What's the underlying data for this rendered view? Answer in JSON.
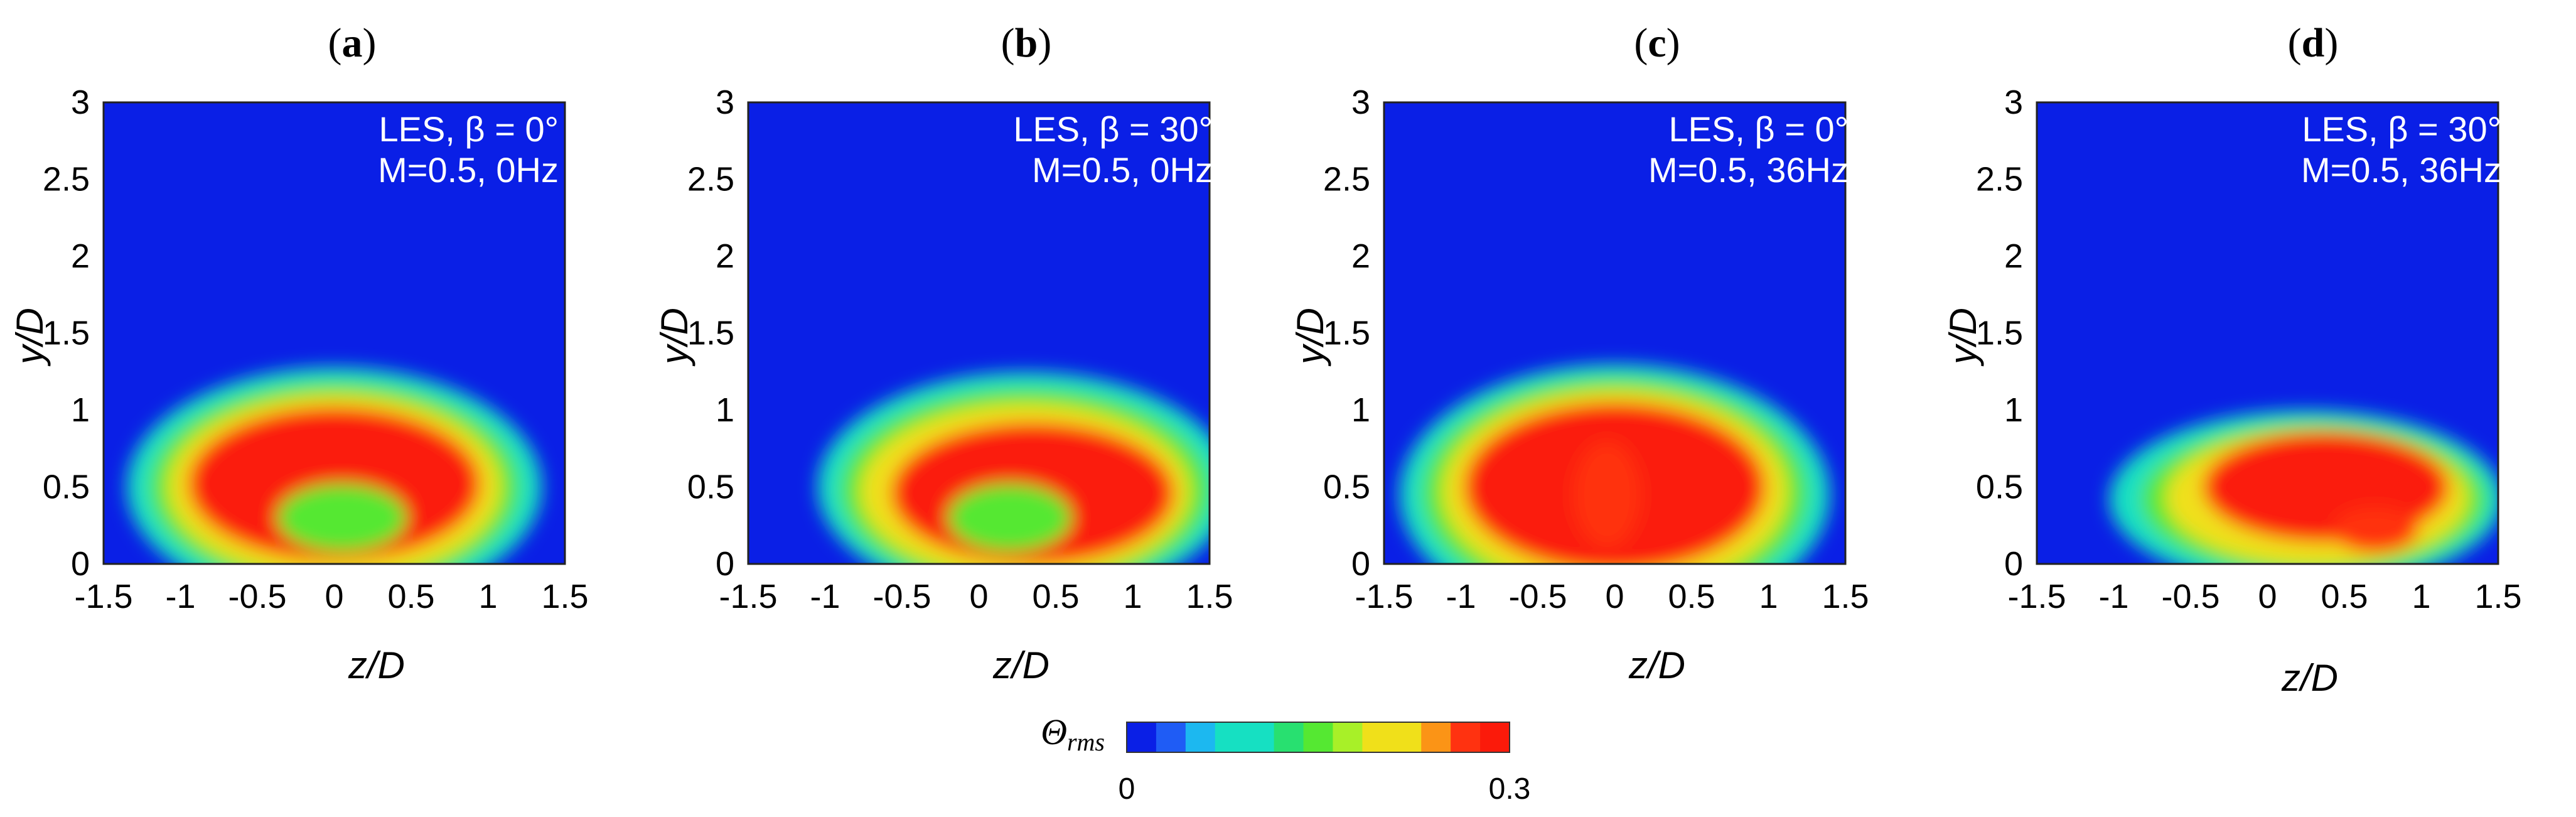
{
  "colors": {
    "background": "#0a1fe6",
    "scale": [
      "#0a1fe6",
      "#1f5cf5",
      "#1cb8f0",
      "#16e0c2",
      "#28e070",
      "#55e832",
      "#a8f028",
      "#f0e01a",
      "#fb9416",
      "#ff3210",
      "#fb1a0a"
    ]
  },
  "chart_data": [
    {
      "type": "heatmap",
      "panel": "(a)",
      "panel_open": "(",
      "panel_letter": "a",
      "panel_close": ")",
      "annotation": [
        "LES, β = 0°",
        "M=0.5, 0Hz"
      ],
      "xlabel": "z/D",
      "ylabel": "y/D",
      "xlim": [
        -1.5,
        1.5
      ],
      "ylim": [
        0,
        3
      ],
      "xticks": [
        "-1.5",
        "-1",
        "-0.5",
        "0",
        "0.5",
        "1",
        "1.5"
      ],
      "yticks": [
        "0",
        "0.5",
        "1",
        "1.5",
        "2",
        "2.5",
        "3"
      ],
      "blobs": [
        {
          "cx": 0.0,
          "cy": 0.5,
          "rx": 1.35,
          "ry": 0.78,
          "level": 0.1
        },
        {
          "cx": 0.0,
          "cy": 0.5,
          "rx": 1.2,
          "ry": 0.68,
          "level": 0.16
        },
        {
          "cx": 0.0,
          "cy": 0.5,
          "rx": 1.08,
          "ry": 0.6,
          "level": 0.22
        },
        {
          "cx": 0.0,
          "cy": 0.52,
          "rx": 0.95,
          "ry": 0.5,
          "level": 0.3
        },
        {
          "cx": 0.05,
          "cy": 0.3,
          "rx": 0.42,
          "ry": 0.22,
          "level": 0.14
        }
      ]
    },
    {
      "type": "heatmap",
      "panel": "(b)",
      "panel_open": "(",
      "panel_letter": "b",
      "panel_close": ")",
      "annotation": [
        "LES, β = 30°",
        "M=0.5, 0Hz"
      ],
      "xlabel": "z/D",
      "ylabel": "y/D",
      "xlim": [
        -1.5,
        1.5
      ],
      "ylim": [
        0,
        3
      ],
      "xticks": [
        "-1.5",
        "-1",
        "-0.5",
        "0",
        "0.5",
        "1",
        "1.5"
      ],
      "yticks": [
        "0",
        "0.5",
        "1",
        "1.5",
        "2",
        "2.5",
        "3"
      ],
      "blobs": [
        {
          "cx": 0.3,
          "cy": 0.5,
          "rx": 1.35,
          "ry": 0.75,
          "level": 0.1
        },
        {
          "cx": 0.3,
          "cy": 0.48,
          "rx": 1.2,
          "ry": 0.66,
          "level": 0.16
        },
        {
          "cx": 0.3,
          "cy": 0.47,
          "rx": 1.07,
          "ry": 0.57,
          "level": 0.22
        },
        {
          "cx": 0.35,
          "cy": 0.46,
          "rx": 0.92,
          "ry": 0.46,
          "level": 0.3
        },
        {
          "cx": 0.2,
          "cy": 0.3,
          "rx": 0.4,
          "ry": 0.22,
          "level": 0.15
        }
      ]
    },
    {
      "type": "heatmap",
      "panel": "(c)",
      "panel_open": "(",
      "panel_letter": "c",
      "panel_close": ")",
      "annotation": [
        "LES, β = 0°",
        "M=0.5, 36Hz"
      ],
      "xlabel": "z/D",
      "ylabel": "y/D",
      "xlim": [
        -1.5,
        1.5
      ],
      "ylim": [
        0,
        3
      ],
      "xticks": [
        "-1.5",
        "-1",
        "-0.5",
        "0",
        "0.5",
        "1",
        "1.5"
      ],
      "yticks": [
        "0",
        "0.5",
        "1",
        "1.5",
        "2",
        "2.5",
        "3"
      ],
      "blobs": [
        {
          "cx": 0.0,
          "cy": 0.45,
          "rx": 1.4,
          "ry": 0.85,
          "level": 0.1
        },
        {
          "cx": 0.0,
          "cy": 0.46,
          "rx": 1.25,
          "ry": 0.75,
          "level": 0.16
        },
        {
          "cx": 0.0,
          "cy": 0.47,
          "rx": 1.12,
          "ry": 0.66,
          "level": 0.22
        },
        {
          "cx": 0.0,
          "cy": 0.5,
          "rx": 0.98,
          "ry": 0.55,
          "level": 0.3
        },
        {
          "cx": -0.05,
          "cy": 0.45,
          "rx": 0.22,
          "ry": 0.35,
          "level": 0.26
        }
      ]
    },
    {
      "type": "heatmap",
      "panel": "(d)",
      "panel_open": "(",
      "panel_letter": "d",
      "panel_close": ")",
      "annotation": [
        "LES, β = 30°",
        "M=0.5, 36Hz"
      ],
      "xlabel": "z/D",
      "ylabel": "y/D",
      "xlim": [
        -1.5,
        1.5
      ],
      "ylim": [
        0,
        3
      ],
      "xticks": [
        "-1.5",
        "-1",
        "-0.5",
        "0",
        "0.5",
        "1",
        "1.5"
      ],
      "yticks": [
        "0",
        "0.5",
        "1",
        "1.5",
        "2",
        "2.5",
        "3"
      ],
      "blobs": [
        {
          "cx": 0.25,
          "cy": 0.42,
          "rx": 1.28,
          "ry": 0.58,
          "level": 0.1
        },
        {
          "cx": 0.3,
          "cy": 0.42,
          "rx": 1.12,
          "ry": 0.5,
          "level": 0.16
        },
        {
          "cx": 0.32,
          "cy": 0.43,
          "rx": 0.98,
          "ry": 0.44,
          "level": 0.22
        },
        {
          "cx": 0.38,
          "cy": 0.5,
          "rx": 0.8,
          "ry": 0.36,
          "level": 0.3
        },
        {
          "cx": 0.7,
          "cy": 0.22,
          "rx": 0.28,
          "ry": 0.15,
          "level": 0.27
        }
      ]
    }
  ],
  "colorbar": {
    "label": "Θ",
    "label_sub": "rms",
    "min": 0,
    "max": 0.3,
    "min_label": "0",
    "max_label": "0.3",
    "segments": 13
  }
}
